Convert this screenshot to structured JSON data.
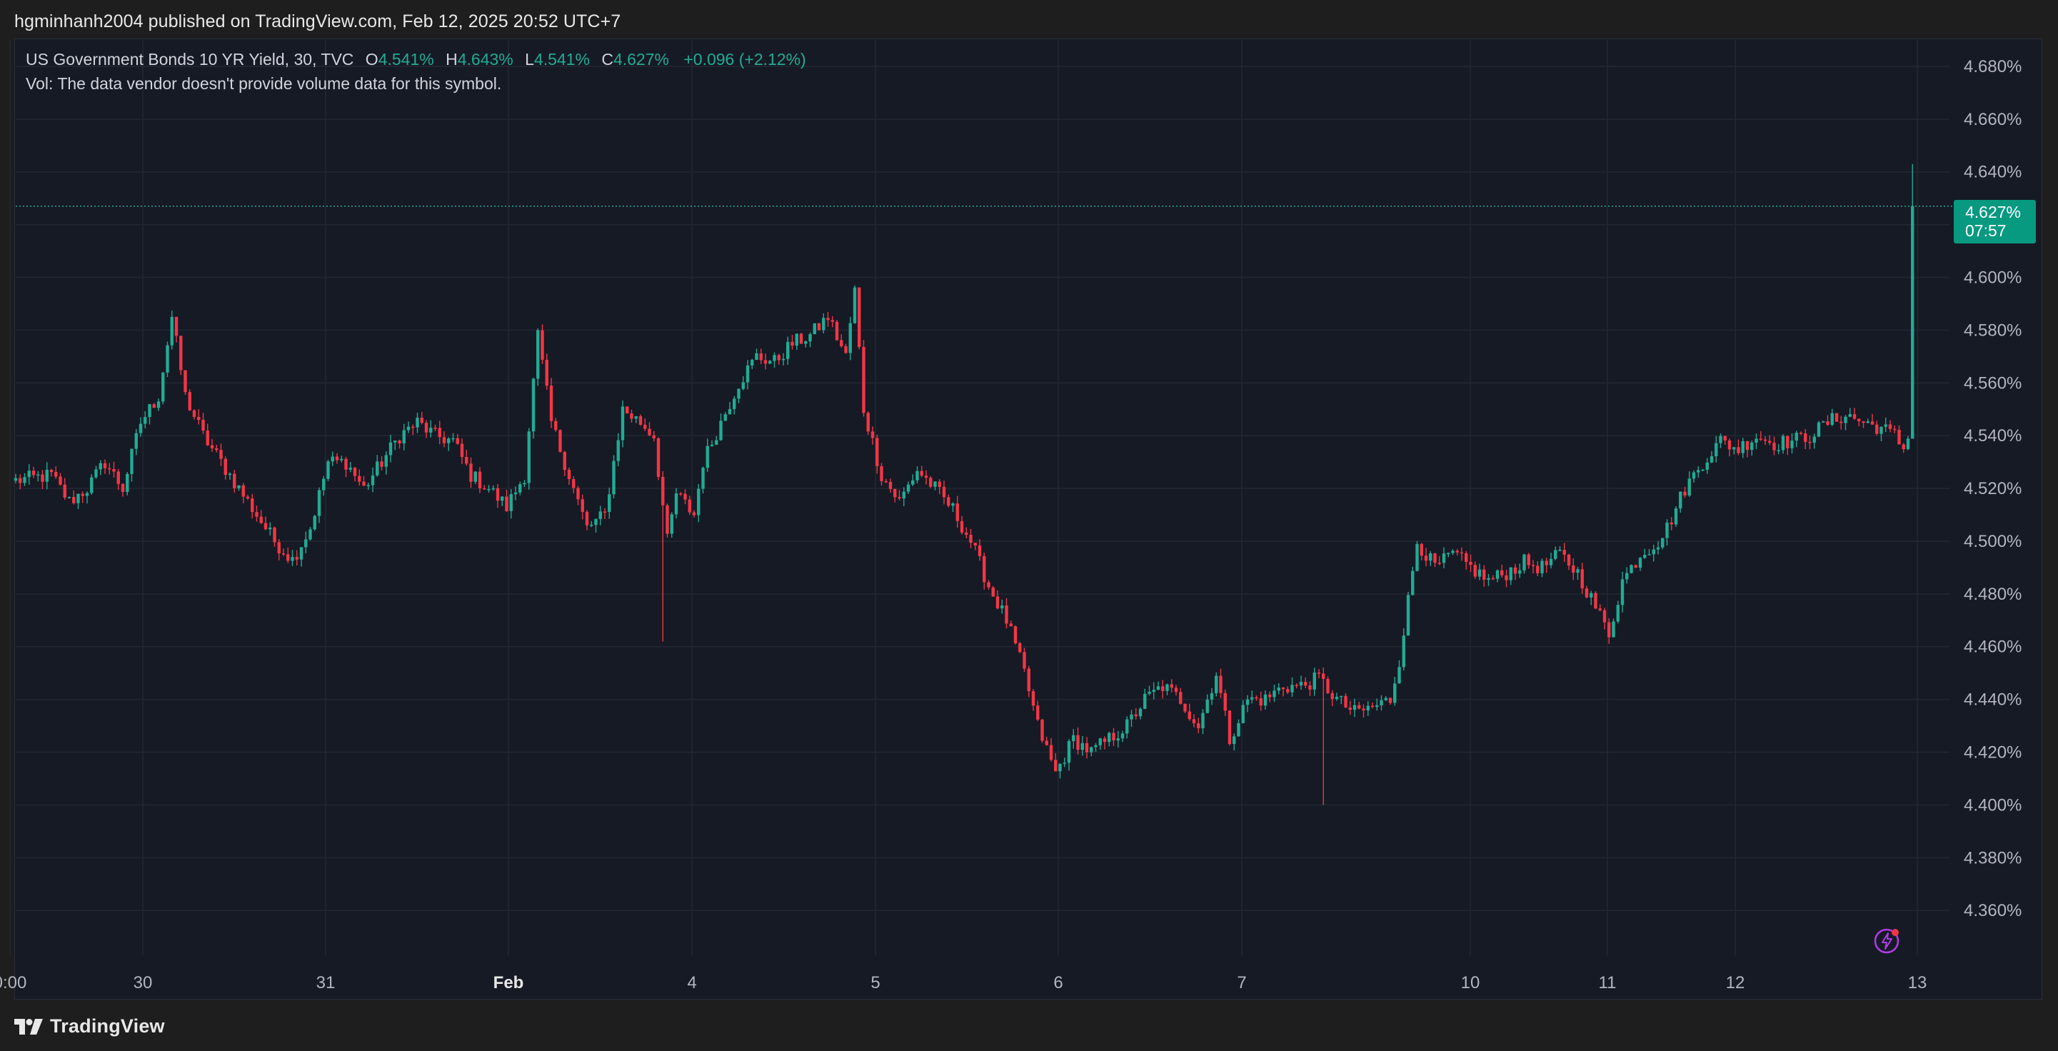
{
  "publisher_line": "hgminhanh2004 published on TradingView.com, Feb 12, 2025 20:52 UTC+7",
  "legend": {
    "symbol": "US Government Bonds 10 YR Yield, 30, TVC",
    "open_key": "O",
    "open": "4.541%",
    "high_key": "H",
    "high": "4.643%",
    "low_key": "L",
    "low": "4.541%",
    "close_key": "C",
    "close": "4.627%",
    "change": "+0.096 (+2.12%)",
    "vol_note": "Vol: The data vendor doesn't provide volume data for this symbol."
  },
  "last_price_tag": {
    "price": "4.627%",
    "countdown": "07:57"
  },
  "footer": {
    "brand": "TradingView"
  },
  "colors": {
    "up": "#22ab94",
    "down": "#f23645",
    "background": "#161a25",
    "grid": "#232733",
    "axis_text": "#b2b5be",
    "price_line": "#22ab94"
  },
  "icons": [
    "tradingview-logo-icon",
    "lightning-bolt-icon"
  ],
  "chart_data": {
    "type": "candlestick",
    "title": "US Government Bonds 10 YR Yield, 30, TVC",
    "interval": "30",
    "ylim": [
      4.343,
      4.69
    ],
    "y_ticks": [
      "4.680%",
      "4.660%",
      "4.640%",
      "4.620%",
      "4.600%",
      "4.580%",
      "4.560%",
      "4.540%",
      "4.520%",
      "4.500%",
      "4.480%",
      "4.460%",
      "4.440%",
      "4.420%",
      "4.400%",
      "4.380%",
      "4.360%"
    ],
    "x_ticks": [
      {
        "label": "0:00",
        "bold": false
      },
      {
        "label": "30",
        "bold": false
      },
      {
        "label": "31",
        "bold": false
      },
      {
        "label": "Feb",
        "bold": true
      },
      {
        "label": "4",
        "bold": false
      },
      {
        "label": "5",
        "bold": false
      },
      {
        "label": "6",
        "bold": false
      },
      {
        "label": "7",
        "bold": false
      },
      {
        "label": "10",
        "bold": false
      },
      {
        "label": "11",
        "bold": false
      },
      {
        "label": "12",
        "bold": false
      },
      {
        "label": "13",
        "bold": false
      }
    ],
    "grid": true,
    "last_price": 4.627,
    "path_anchors_index_price": [
      [
        0,
        4.523
      ],
      [
        8,
        4.525
      ],
      [
        12,
        4.515
      ],
      [
        16,
        4.52
      ],
      [
        20,
        4.53
      ],
      [
        24,
        4.52
      ],
      [
        28,
        4.545
      ],
      [
        32,
        4.555
      ],
      [
        35,
        4.585
      ],
      [
        38,
        4.555
      ],
      [
        42,
        4.54
      ],
      [
        46,
        4.53
      ],
      [
        50,
        4.52
      ],
      [
        54,
        4.51
      ],
      [
        58,
        4.5
      ],
      [
        62,
        4.493
      ],
      [
        66,
        4.505
      ],
      [
        70,
        4.53
      ],
      [
        74,
        4.53
      ],
      [
        78,
        4.52
      ],
      [
        82,
        4.53
      ],
      [
        86,
        4.54
      ],
      [
        90,
        4.545
      ],
      [
        94,
        4.54
      ],
      [
        98,
        4.538
      ],
      [
        102,
        4.525
      ],
      [
        106,
        4.52
      ],
      [
        110,
        4.513
      ],
      [
        114,
        4.525
      ],
      [
        117,
        4.578
      ],
      [
        120,
        4.545
      ],
      [
        124,
        4.525
      ],
      [
        128,
        4.505
      ],
      [
        132,
        4.51
      ],
      [
        136,
        4.55
      ],
      [
        140,
        4.545
      ],
      [
        143,
        4.54
      ],
      [
        146,
        4.5
      ],
      [
        148,
        4.518
      ],
      [
        152,
        4.51
      ],
      [
        154,
        4.53
      ],
      [
        158,
        4.545
      ],
      [
        162,
        4.56
      ],
      [
        166,
        4.57
      ],
      [
        170,
        4.568
      ],
      [
        174,
        4.575
      ],
      [
        178,
        4.578
      ],
      [
        182,
        4.585
      ],
      [
        186,
        4.57
      ],
      [
        188,
        4.595
      ],
      [
        190,
        4.55
      ],
      [
        194,
        4.525
      ],
      [
        198,
        4.515
      ],
      [
        202,
        4.527
      ],
      [
        206,
        4.52
      ],
      [
        210,
        4.512
      ],
      [
        214,
        4.5
      ],
      [
        218,
        4.483
      ],
      [
        222,
        4.47
      ],
      [
        226,
        4.45
      ],
      [
        229,
        4.43
      ],
      [
        233,
        4.412
      ],
      [
        237,
        4.425
      ],
      [
        241,
        4.42
      ],
      [
        245,
        4.425
      ],
      [
        249,
        4.43
      ],
      [
        253,
        4.44
      ],
      [
        257,
        4.445
      ],
      [
        261,
        4.44
      ],
      [
        265,
        4.43
      ],
      [
        269,
        4.45
      ],
      [
        272,
        4.425
      ],
      [
        276,
        4.44
      ],
      [
        280,
        4.44
      ],
      [
        284,
        4.445
      ],
      [
        288,
        4.445
      ],
      [
        292,
        4.448
      ],
      [
        296,
        4.44
      ],
      [
        300,
        4.435
      ],
      [
        304,
        4.437
      ],
      [
        308,
        4.44
      ],
      [
        310,
        4.455
      ],
      [
        314,
        4.5
      ],
      [
        318,
        4.49
      ],
      [
        322,
        4.495
      ],
      [
        326,
        4.49
      ],
      [
        330,
        4.485
      ],
      [
        334,
        4.488
      ],
      [
        338,
        4.492
      ],
      [
        342,
        4.49
      ],
      [
        346,
        4.495
      ],
      [
        350,
        4.488
      ],
      [
        354,
        4.475
      ],
      [
        357,
        4.465
      ],
      [
        360,
        4.485
      ],
      [
        364,
        4.495
      ],
      [
        368,
        4.5
      ],
      [
        370,
        4.505
      ],
      [
        374,
        4.52
      ],
      [
        378,
        4.53
      ],
      [
        382,
        4.538
      ],
      [
        386,
        4.535
      ],
      [
        390,
        4.54
      ],
      [
        394,
        4.537
      ],
      [
        398,
        4.538
      ],
      [
        402,
        4.54
      ],
      [
        406,
        4.545
      ],
      [
        410,
        4.548
      ],
      [
        414,
        4.545
      ],
      [
        418,
        4.543
      ],
      [
        421,
        4.54
      ],
      [
        423,
        4.535
      ],
      [
        424,
        4.541
      ],
      [
        425,
        4.627
      ]
    ]
  }
}
